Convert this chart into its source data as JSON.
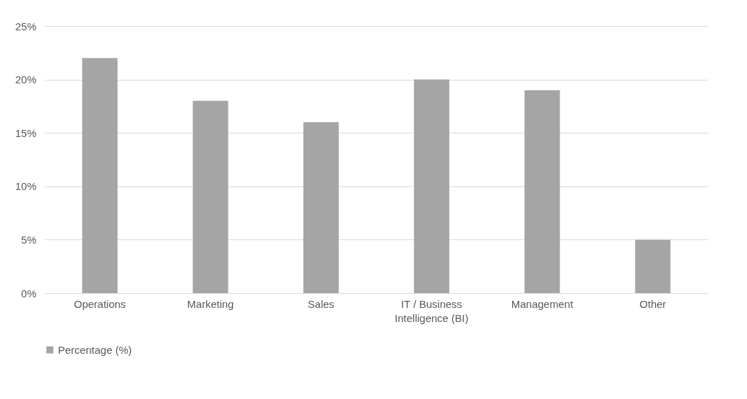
{
  "chart_data": {
    "type": "bar",
    "categories": [
      "Operations",
      "Marketing",
      "Sales",
      "IT / Business Intelligence (BI)",
      "Management",
      "Other"
    ],
    "series": [
      {
        "name": "Percentage (%)",
        "color": "#a5a5a5",
        "values": [
          22,
          18,
          16,
          20,
          19,
          5
        ]
      }
    ],
    "ylim": [
      0,
      25
    ],
    "yticks": [
      {
        "value": 0,
        "label": "0%"
      },
      {
        "value": 5,
        "label": "5%"
      },
      {
        "value": 10,
        "label": "10%"
      },
      {
        "value": 15,
        "label": "15%"
      },
      {
        "value": 20,
        "label": "20%"
      },
      {
        "value": 25,
        "label": "25%"
      }
    ],
    "grid": "y",
    "legend": "bottom"
  }
}
